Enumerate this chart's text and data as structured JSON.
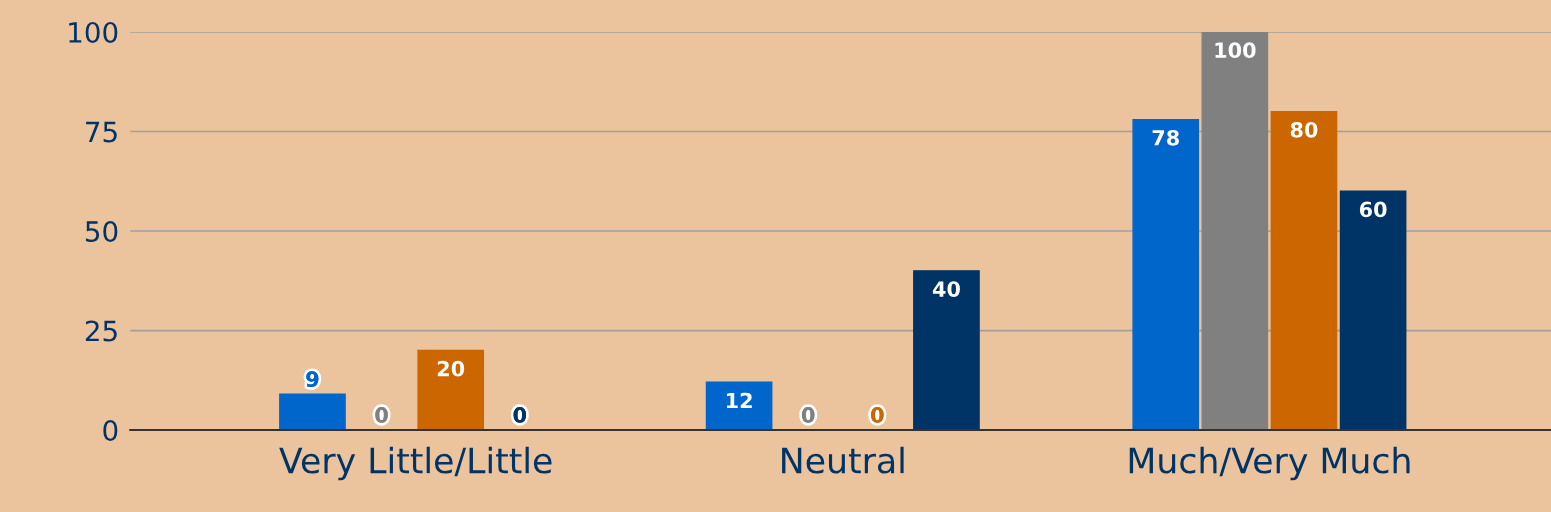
{
  "chart_data": {
    "type": "bar",
    "categories": [
      "Very Little/Little",
      "Neutral",
      "Much/Very Much"
    ],
    "series": [
      {
        "color": "#0066cc",
        "values": [
          9,
          12,
          78
        ]
      },
      {
        "color": "#808080",
        "values": [
          0,
          0,
          100
        ]
      },
      {
        "color": "#cc6600",
        "values": [
          20,
          0,
          80
        ]
      },
      {
        "color": "#003366",
        "values": [
          0,
          40,
          60
        ]
      }
    ],
    "ylim": [
      0,
      100
    ],
    "yticks": [
      0,
      25,
      50,
      75,
      100
    ],
    "grid": "y",
    "data_labels": true,
    "legend": false
  }
}
